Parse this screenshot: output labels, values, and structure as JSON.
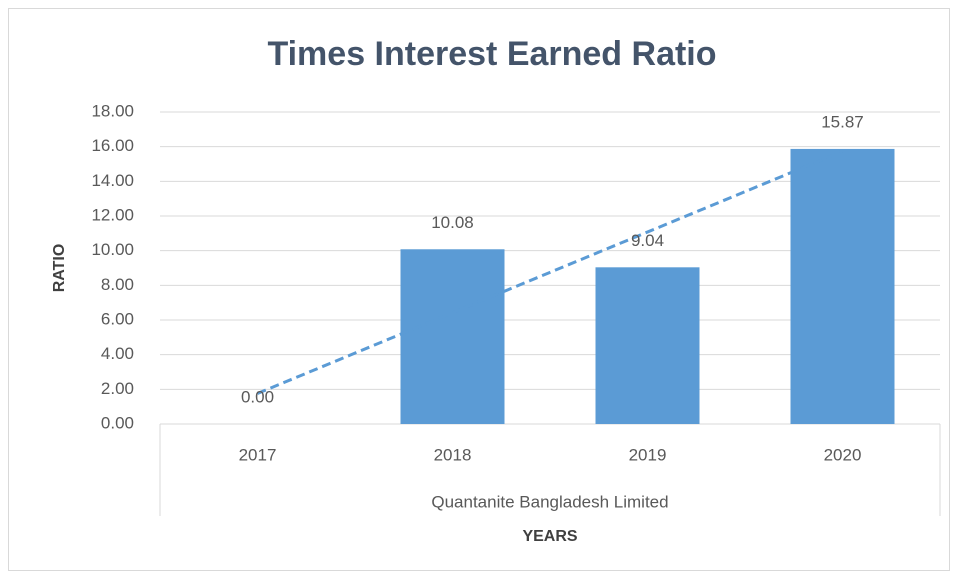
{
  "chart_data": {
    "type": "bar",
    "title": "Times Interest Earned Ratio",
    "categories": [
      "2017",
      "2018",
      "2019",
      "2020"
    ],
    "group_label": "Quantanite Bangladesh Limited",
    "x_label": "YEARS",
    "y_label": "RATIO",
    "values": [
      0,
      10.08,
      9.04,
      15.87
    ],
    "value_labels": [
      "0.00",
      "10.08",
      "9.04",
      "15.87"
    ],
    "color": "#5b9bd5",
    "trendline": "linear",
    "ylim": [
      0,
      18
    ],
    "yticks": [
      {
        "value": 0,
        "label": "0.00"
      },
      {
        "value": 2,
        "label": "2.00"
      },
      {
        "value": 4,
        "label": "4.00"
      },
      {
        "value": 6,
        "label": "6.00"
      },
      {
        "value": 8,
        "label": "8.00"
      },
      {
        "value": 10,
        "label": "10.00"
      },
      {
        "value": 12,
        "label": "12.00"
      },
      {
        "value": 14,
        "label": "14.00"
      },
      {
        "value": 16,
        "label": "16.00"
      },
      {
        "value": 18,
        "label": "18.00"
      }
    ],
    "grid": true
  }
}
